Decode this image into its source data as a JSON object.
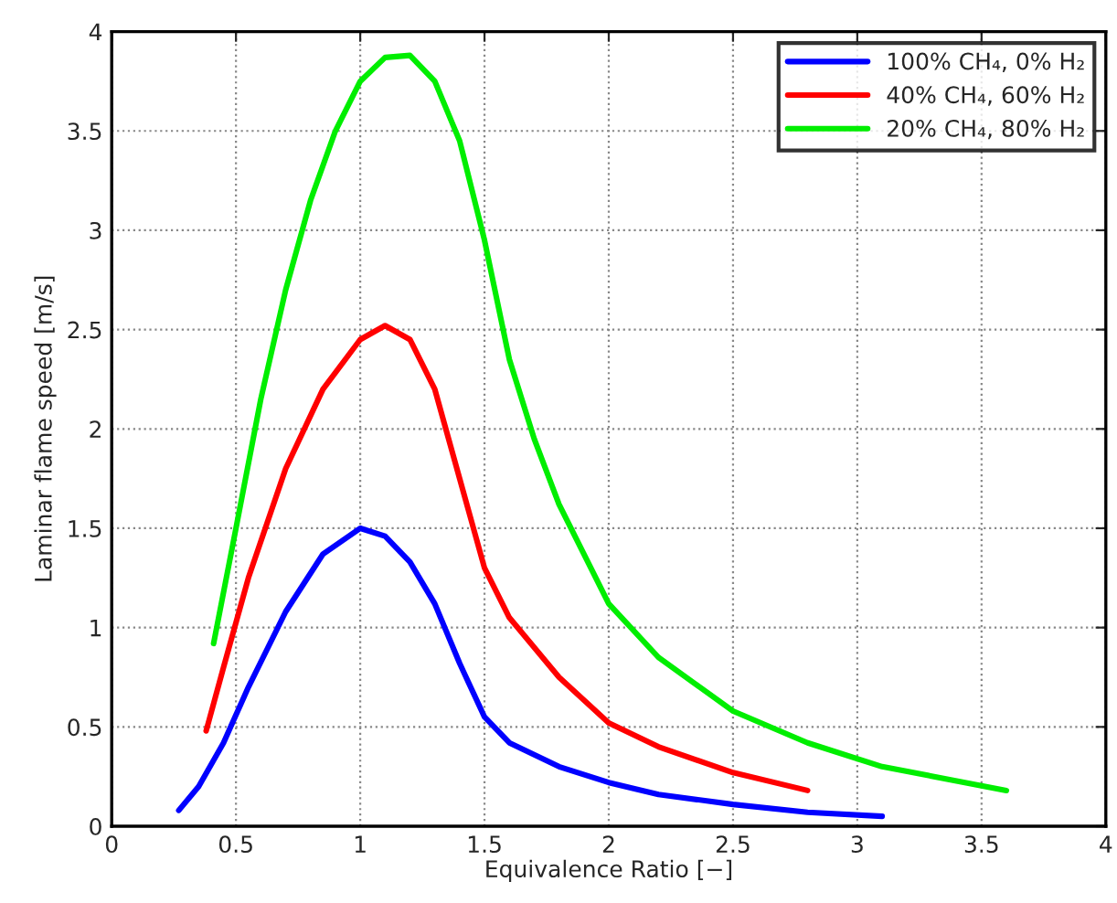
{
  "chart_data": {
    "type": "line",
    "xlabel": "Equivalence Ratio [−]",
    "ylabel": "Laminar flame speed [m/s]",
    "xlim": [
      0,
      4
    ],
    "ylim": [
      0,
      4
    ],
    "xticks": [
      0,
      0.5,
      1,
      1.5,
      2,
      2.5,
      3,
      3.5,
      4
    ],
    "yticks": [
      0,
      0.5,
      1,
      1.5,
      2,
      2.5,
      3,
      3.5,
      4
    ],
    "grid": true,
    "legend": "top right",
    "line_style": "solid",
    "series": [
      {
        "name": "100% CH₄, 0% H₂",
        "color": "#0000ff",
        "x": [
          0.27,
          0.35,
          0.45,
          0.55,
          0.7,
          0.85,
          1.0,
          1.1,
          1.2,
          1.3,
          1.4,
          1.5,
          1.6,
          1.8,
          2.0,
          2.2,
          2.5,
          2.8,
          3.1
        ],
        "values": [
          0.08,
          0.2,
          0.42,
          0.7,
          1.08,
          1.37,
          1.5,
          1.46,
          1.33,
          1.12,
          0.82,
          0.55,
          0.42,
          0.3,
          0.22,
          0.16,
          0.11,
          0.07,
          0.05
        ]
      },
      {
        "name": "40% CH₄, 60% H₂",
        "color": "#ff0000",
        "x": [
          0.38,
          0.45,
          0.55,
          0.7,
          0.85,
          1.0,
          1.1,
          1.2,
          1.3,
          1.4,
          1.5,
          1.6,
          1.8,
          2.0,
          2.2,
          2.5,
          2.8
        ],
        "values": [
          0.48,
          0.8,
          1.25,
          1.8,
          2.2,
          2.45,
          2.52,
          2.45,
          2.2,
          1.75,
          1.3,
          1.05,
          0.75,
          0.52,
          0.4,
          0.27,
          0.18
        ]
      },
      {
        "name": "20% CH₄, 80% H₂",
        "color": "#00ee00",
        "x": [
          0.41,
          0.5,
          0.6,
          0.7,
          0.8,
          0.9,
          1.0,
          1.1,
          1.2,
          1.3,
          1.4,
          1.5,
          1.6,
          1.7,
          1.8,
          2.0,
          2.2,
          2.5,
          2.8,
          3.1,
          3.6
        ],
        "values": [
          0.92,
          1.5,
          2.15,
          2.7,
          3.15,
          3.5,
          3.75,
          3.87,
          3.88,
          3.75,
          3.45,
          2.95,
          2.35,
          1.95,
          1.62,
          1.12,
          0.85,
          0.58,
          0.42,
          0.3,
          0.18
        ]
      }
    ]
  }
}
